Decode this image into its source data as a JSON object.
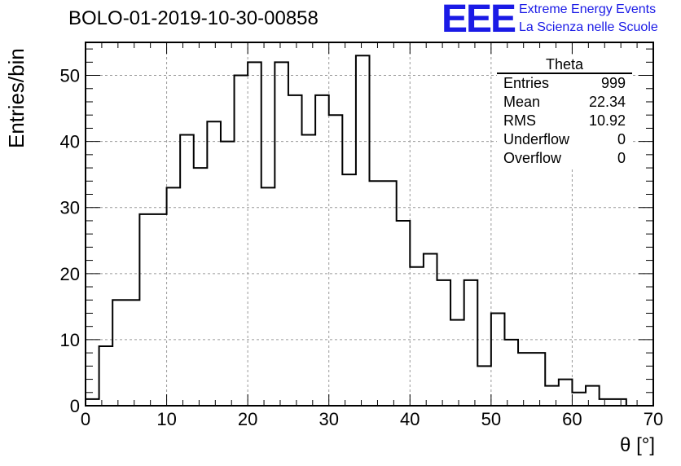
{
  "run_title": "BOLO-01-2019-10-30-00858",
  "logo": {
    "letters": "EEE",
    "line1": "Extreme Energy Events",
    "line2": "La Scienza nelle Scuole",
    "color": "#1a1ae6"
  },
  "stats_box": {
    "title": "Theta",
    "rows": [
      {
        "label": "Entries",
        "value": "999"
      },
      {
        "label": "Mean",
        "value": "22.34"
      },
      {
        "label": "RMS",
        "value": "10.92"
      },
      {
        "label": "Underflow",
        "value": "0"
      },
      {
        "label": "Overflow",
        "value": "0"
      }
    ]
  },
  "chart_data": {
    "type": "bar",
    "subtype": "step-histogram",
    "title": "BOLO-01-2019-10-30-00858",
    "xlabel": "θ [°]",
    "ylabel": "Entries/bin",
    "xlim": [
      0,
      70
    ],
    "ylim": [
      0,
      55
    ],
    "xticks": [
      "0",
      "10",
      "20",
      "30",
      "40",
      "50",
      "60",
      "70"
    ],
    "yticks": [
      "0",
      "10",
      "20",
      "30",
      "40",
      "50"
    ],
    "grid": true,
    "bin_width": 1.6667,
    "bin_edges_start": 0,
    "values": [
      1,
      9,
      16,
      16,
      29,
      29,
      33,
      41,
      36,
      43,
      40,
      50,
      52,
      33,
      52,
      47,
      41,
      47,
      44,
      35,
      53,
      34,
      34,
      28,
      21,
      23,
      19,
      13,
      19,
      6,
      14,
      10,
      8,
      8,
      3,
      4,
      2,
      3,
      1,
      1
    ],
    "line_color": "#000000"
  }
}
